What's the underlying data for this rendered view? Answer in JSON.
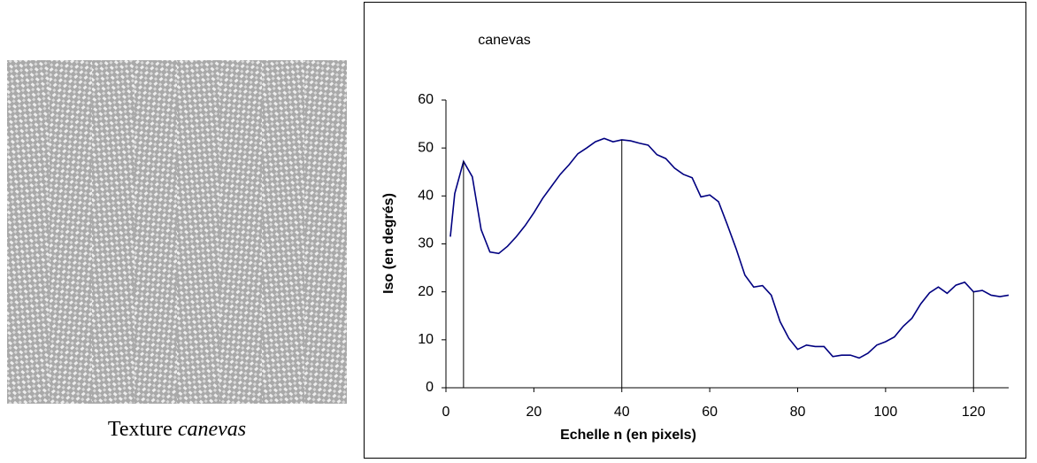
{
  "caption": {
    "text": "Texture",
    "emphasis": "canevas"
  },
  "chart_data": {
    "type": "line",
    "title": "canevas",
    "x_label": "Echelle n (en pixels)",
    "y_label": "Iso (en degrés)",
    "x": [
      1,
      2,
      4,
      6,
      8,
      10,
      12,
      14,
      16,
      18,
      20,
      22,
      24,
      26,
      28,
      30,
      32,
      34,
      36,
      38,
      40,
      42,
      44,
      46,
      48,
      50,
      52,
      54,
      56,
      58,
      60,
      62,
      64,
      66,
      68,
      70,
      72,
      74,
      76,
      78,
      80,
      82,
      84,
      86,
      88,
      90,
      92,
      94,
      96,
      98,
      100,
      102,
      104,
      106,
      108,
      110,
      112,
      114,
      116,
      118,
      120,
      122,
      124,
      126,
      128
    ],
    "series": [
      {
        "name": "canevas",
        "color": "#000080",
        "values": [
          31.5,
          40.5,
          47.2,
          44,
          33,
          28.3,
          28,
          29.5,
          31.5,
          33.8,
          36.5,
          39.5,
          42,
          44.5,
          46.5,
          48.8,
          50,
          51.3,
          52,
          51.3,
          51.7,
          51.5,
          51,
          50.6,
          48.6,
          47.8,
          45.8,
          44.5,
          43.8,
          39.8,
          40.2,
          38.8,
          34,
          29,
          23.5,
          21,
          21.3,
          19.3,
          13.8,
          10.3,
          8,
          8.9,
          8.6,
          8.6,
          6.5,
          6.8,
          6.8,
          6.2,
          7.2,
          8.9,
          9.6,
          10.6,
          12.8,
          14.5,
          17.5,
          19.8,
          21,
          19.7,
          21.4,
          22,
          20,
          20.3,
          19.3,
          19,
          19.3
        ]
      }
    ],
    "vlines": [
      4,
      40,
      120
    ],
    "xlim": [
      0,
      128
    ],
    "xticks": [
      0,
      20,
      40,
      60,
      80,
      100,
      120
    ],
    "ylim": [
      0,
      60
    ],
    "yticks": [
      0,
      10,
      20,
      30,
      40,
      50,
      60
    ]
  }
}
